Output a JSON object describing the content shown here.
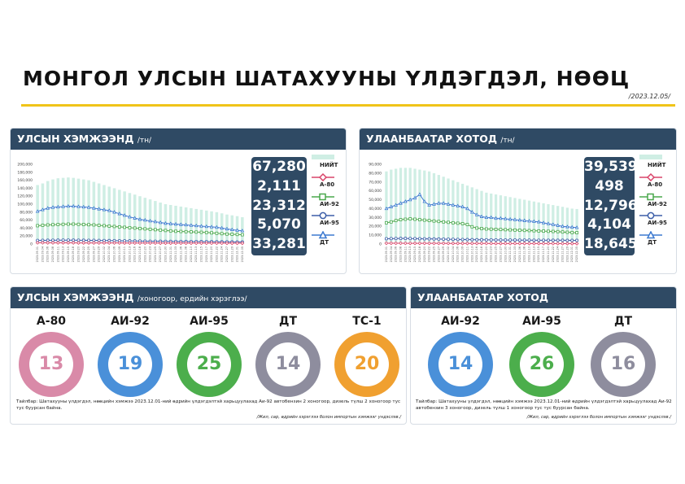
{
  "title": "МОНГОЛ УЛСЫН ШАТАХУУНЫ ҮЛДЭГДЭЛ, НӨӨЦ",
  "date": "/2023.12.05/",
  "national_stock": {
    "header": "УЛСЫН ХЭМЖЭЭНД",
    "unit": "/тн/",
    "totals": [
      "67,280",
      "2,111",
      "23,312",
      "5,070",
      "33,281"
    ],
    "legend": [
      "НИЙТ",
      "А-80",
      "АИ-92",
      "АИ-95",
      "ДТ"
    ]
  },
  "ub_stock": {
    "header": "УЛААНБААТАР ХОТОД",
    "unit": "/тн/",
    "totals": [
      "39,539",
      "498",
      "12,796",
      "4,104",
      "18,645"
    ],
    "legend": [
      "НИЙТ",
      "А-80",
      "АИ-92",
      "АИ-95",
      "ДТ"
    ]
  },
  "national_days": {
    "header": "УЛСЫН ХЭМЖЭЭНД",
    "subheader": "/хоногоор, ердийн хэрэглээ/",
    "note": "Тайлбар: Шатахууны үлдэгдэл, нөөцийн хэмжээ 2023.12.01-ний өдрийн үлдэгдэлтэй харьцуулахад Аи-92 автобензин 2 хоногоор, дизель түлш 2 хоногоор тус тус буурсан байна.",
    "source": "/Жил, сар, өдрийн хэрэглээ болон импортын хэмжээг үндэслэв./"
  },
  "ub_days": {
    "header": "УЛААНБААТАР ХОТОД",
    "note": "Тайлбар: Шатахууны үлдэгдэл, нөөцийн хэмжээ 2023.12.01-ний өдрийн үлдэгдэлтэй харьцуулахад Аи-92 автобензин 3 хоногоор, дизель түлш 1 хоногоор тус тус буурсан байна.",
    "source": "/Жил, сар, өдрийн хэрэглээ болон импортын хэмжээг үндэслэв./"
  },
  "colors": {
    "header_bg": "#2f4a64",
    "bar": "#cfeee4",
    "a80": "#d9456a",
    "ai92": "#4aa84d",
    "ai95": "#3d5fa8",
    "dt": "#3d7ad0",
    "title_line": "#f0c419"
  },
  "chart_data": [
    {
      "type": "bar",
      "title": "УЛСЫН ХЭМЖЭЭНД /тн/",
      "ylim": [
        0,
        200000
      ],
      "yticks": [
        "200,000",
        "180,000",
        "160,000",
        "140,000",
        "120,000",
        "100,000",
        "80,000",
        "60,000",
        "40,000",
        "20,000",
        "0"
      ],
      "x": [
        "2023.09.01",
        "2023.09.04",
        "2023.09.06",
        "2023.09.08",
        "2023.09.11",
        "2023.09.13",
        "2023.09.15",
        "2023.09.18",
        "2023.09.20",
        "2023.09.22",
        "2023.09.25",
        "2023.09.27",
        "2023.09.29",
        "2023.10.02",
        "2023.10.04",
        "2023.10.06",
        "2023.10.09",
        "2023.10.11",
        "2023.10.13",
        "2023.10.16",
        "2023.10.18",
        "2023.10.20",
        "2023.10.23",
        "2023.10.25",
        "2023.10.27",
        "2023.10.30",
        "2023.11.01",
        "2023.11.03",
        "2023.11.06",
        "2023.11.08",
        "2023.11.10",
        "2023.11.13",
        "2023.11.15",
        "2023.11.17",
        "2023.11.20",
        "2023.11.22",
        "2023.11.24",
        "2023.11.27",
        "2023.11.29",
        "2023.12.01",
        "2023.12.05"
      ],
      "series": [
        {
          "name": "НИЙТ",
          "style": "bar",
          "values": [
            148000,
            152000,
            158000,
            162000,
            165000,
            166000,
            167000,
            166000,
            164000,
            162000,
            160000,
            156000,
            152000,
            148000,
            144000,
            140000,
            136000,
            132000,
            128000,
            124000,
            120000,
            116000,
            112000,
            108000,
            104000,
            100000,
            98000,
            96000,
            94000,
            92000,
            90000,
            88000,
            86000,
            84000,
            82000,
            80000,
            77000,
            74000,
            72000,
            70000,
            67280
          ]
        },
        {
          "name": "ДТ",
          "style": "line",
          "values": [
            82000,
            86000,
            90000,
            92000,
            93000,
            94000,
            95000,
            95000,
            94000,
            93000,
            92000,
            90000,
            88000,
            86000,
            84000,
            80000,
            76000,
            72000,
            68000,
            65000,
            62000,
            60000,
            58000,
            56000,
            54000,
            52000,
            51000,
            50000,
            49000,
            48000,
            47000,
            46000,
            45000,
            44000,
            43000,
            42000,
            40000,
            38000,
            36000,
            34500,
            33281
          ]
        },
        {
          "name": "АИ-92",
          "style": "line",
          "values": [
            46000,
            47000,
            48000,
            48500,
            49000,
            49500,
            50000,
            50000,
            49500,
            49000,
            48500,
            48000,
            47000,
            46000,
            45000,
            44000,
            43000,
            42000,
            41000,
            40000,
            39000,
            38000,
            37000,
            36000,
            35000,
            34000,
            33000,
            32000,
            31500,
            31000,
            30500,
            30000,
            29500,
            29000,
            28000,
            27000,
            26000,
            25000,
            24500,
            24000,
            23312
          ]
        },
        {
          "name": "АИ-95",
          "style": "line",
          "values": [
            9000,
            9200,
            9400,
            9500,
            9600,
            9700,
            9700,
            9600,
            9500,
            9400,
            9300,
            9200,
            9000,
            8800,
            8600,
            8400,
            8200,
            8000,
            7800,
            7600,
            7400,
            7200,
            7000,
            6900,
            6800,
            6700,
            6600,
            6500,
            6400,
            6300,
            6200,
            6100,
            6000,
            5900,
            5800,
            5700,
            5500,
            5400,
            5300,
            5200,
            5070
          ]
        },
        {
          "name": "А-80",
          "style": "line",
          "values": [
            3200,
            3200,
            3100,
            3100,
            3100,
            3000,
            3000,
            3000,
            2900,
            2900,
            2900,
            2800,
            2800,
            2800,
            2700,
            2700,
            2700,
            2600,
            2600,
            2600,
            2500,
            2500,
            2500,
            2500,
            2400,
            2400,
            2400,
            2400,
            2300,
            2300,
            2300,
            2300,
            2200,
            2200,
            2200,
            2200,
            2200,
            2100,
            2100,
            2100,
            2111
          ]
        }
      ]
    },
    {
      "type": "bar",
      "title": "УЛААНБААТАР ХОТОД /тн/",
      "ylim": [
        0,
        90000
      ],
      "yticks": [
        "90,000",
        "80,000",
        "70,000",
        "60,000",
        "50,000",
        "40,000",
        "30,000",
        "20,000",
        "10,000",
        "0"
      ],
      "x": [
        "2023.09.01",
        "2023.09.04",
        "2023.09.06",
        "2023.09.08",
        "2023.09.11",
        "2023.09.13",
        "2023.09.15",
        "2023.09.18",
        "2023.09.20",
        "2023.09.22",
        "2023.09.25",
        "2023.09.27",
        "2023.09.29",
        "2023.10.02",
        "2023.10.04",
        "2023.10.06",
        "2023.10.09",
        "2023.10.11",
        "2023.10.13",
        "2023.10.16",
        "2023.10.18",
        "2023.10.20",
        "2023.10.23",
        "2023.10.25",
        "2023.10.27",
        "2023.10.30",
        "2023.11.01",
        "2023.11.03",
        "2023.11.06",
        "2023.11.08",
        "2023.11.10",
        "2023.11.13",
        "2023.11.15",
        "2023.11.17",
        "2023.11.20",
        "2023.11.22",
        "2023.11.24",
        "2023.11.27",
        "2023.11.29",
        "2023.12.01",
        "2023.12.05"
      ],
      "series": [
        {
          "name": "НИЙТ",
          "style": "bar",
          "values": [
            82000,
            84000,
            85000,
            86000,
            86000,
            86000,
            85000,
            84000,
            83000,
            82000,
            80000,
            78000,
            76000,
            74000,
            72000,
            70000,
            68000,
            66000,
            64000,
            62000,
            60000,
            58000,
            57000,
            56000,
            55000,
            54000,
            53000,
            52000,
            51000,
            50000,
            49000,
            48000,
            47000,
            46000,
            45000,
            44000,
            43000,
            42000,
            41000,
            40000,
            39539
          ]
        },
        {
          "name": "ДТ",
          "style": "line",
          "values": [
            40000,
            42000,
            44000,
            46000,
            48000,
            50000,
            52000,
            56000,
            48000,
            44000,
            45000,
            46000,
            46000,
            45000,
            44000,
            43000,
            42000,
            40000,
            36000,
            33000,
            31000,
            30000,
            30000,
            29000,
            29000,
            28500,
            28000,
            27500,
            27000,
            26500,
            26000,
            25500,
            25000,
            24000,
            23000,
            22000,
            21000,
            20000,
            19500,
            19000,
            18645
          ]
        },
        {
          "name": "АИ-92",
          "style": "line",
          "values": [
            24000,
            25000,
            26500,
            27500,
            28000,
            28500,
            28000,
            27500,
            27000,
            26500,
            26000,
            25500,
            25000,
            24500,
            24000,
            23500,
            23000,
            22000,
            19500,
            18000,
            17500,
            17000,
            16800,
            16600,
            16400,
            16200,
            16000,
            15800,
            15600,
            15400,
            15200,
            15000,
            14800,
            14600,
            14400,
            14200,
            14000,
            13600,
            13300,
            13000,
            12796
          ]
        },
        {
          "name": "АИ-95",
          "style": "line",
          "values": [
            6000,
            6100,
            6200,
            6300,
            6300,
            6200,
            6100,
            6000,
            5900,
            5800,
            5700,
            5600,
            5500,
            5400,
            5300,
            5200,
            5100,
            5000,
            4900,
            4800,
            4800,
            4700,
            4700,
            4600,
            4600,
            4500,
            4500,
            4500,
            4400,
            4400,
            4400,
            4300,
            4300,
            4300,
            4200,
            4200,
            4200,
            4200,
            4100,
            4100,
            4104
          ]
        },
        {
          "name": "А-80",
          "style": "line",
          "values": [
            900,
            900,
            880,
            870,
            860,
            850,
            840,
            830,
            820,
            810,
            800,
            780,
            760,
            740,
            720,
            700,
            690,
            680,
            670,
            660,
            650,
            640,
            630,
            620,
            610,
            600,
            590,
            580,
            570,
            560,
            550,
            540,
            540,
            530,
            520,
            520,
            510,
            510,
            500,
            500,
            498
          ]
        }
      ]
    },
    {
      "type": "donut",
      "title": "УЛСЫН ХЭМЖЭЭНД /хоногоор, ердийн хэрэглээ/",
      "categories": [
        "А-80",
        "АИ-92",
        "АИ-95",
        "ДТ",
        "ТС-1"
      ],
      "values": [
        13,
        19,
        25,
        14,
        20
      ],
      "colors": [
        "#d98aa8",
        "#4a90d9",
        "#4cae4c",
        "#8e8d9e",
        "#f0a030"
      ]
    },
    {
      "type": "donut",
      "title": "УЛААНБААТАР ХОТОД",
      "categories": [
        "АИ-92",
        "АИ-95",
        "ДТ"
      ],
      "values": [
        14,
        26,
        16
      ],
      "colors": [
        "#4a90d9",
        "#4cae4c",
        "#8e8d9e"
      ]
    }
  ]
}
